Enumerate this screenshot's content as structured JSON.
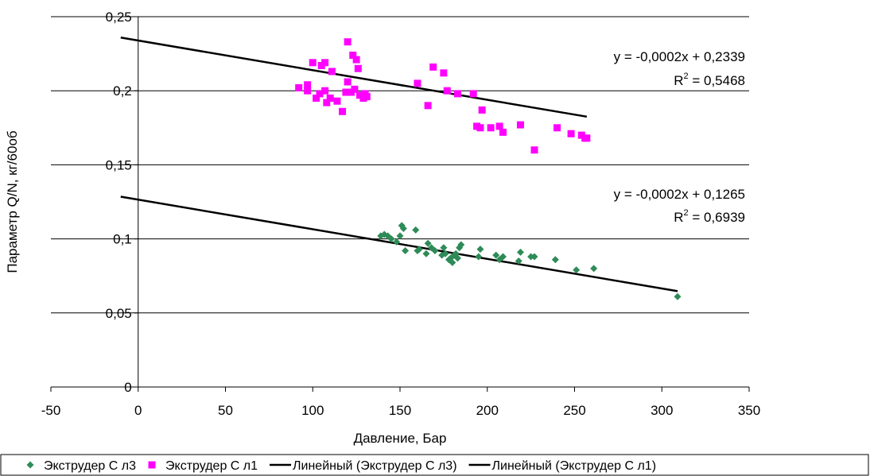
{
  "chart_data": {
    "type": "scatter",
    "xlabel": "Давление, Бар",
    "ylabel": "Параметр Q/N, кг/60об",
    "xlim": [
      -50,
      350
    ],
    "ylim": [
      0,
      0.25
    ],
    "x_ticks": [
      -50,
      0,
      50,
      100,
      150,
      200,
      250,
      300,
      350
    ],
    "x_tick_labels": [
      "-50",
      "0",
      "50",
      "100",
      "150",
      "200",
      "250",
      "300",
      "350"
    ],
    "y_ticks": [
      0,
      0.05,
      0.1,
      0.15,
      0.2,
      0.25
    ],
    "y_tick_labels": [
      "0",
      "0,05",
      "0,1",
      "0,15",
      "0,2",
      "0,25"
    ],
    "grid": "horizontal",
    "legend_position": "bottom",
    "series": [
      {
        "name": "Экструдер С л3",
        "marker": "diamond",
        "color": "#2e8b57",
        "points": [
          [
            139,
            0.102
          ],
          [
            141,
            0.103
          ],
          [
            143,
            0.102
          ],
          [
            145,
            0.1
          ],
          [
            148,
            0.098
          ],
          [
            150,
            0.102
          ],
          [
            151,
            0.109
          ],
          [
            152,
            0.107
          ],
          [
            153,
            0.092
          ],
          [
            159,
            0.106
          ],
          [
            160,
            0.092
          ],
          [
            161,
            0.093
          ],
          [
            165,
            0.09
          ],
          [
            166,
            0.097
          ],
          [
            168,
            0.094
          ],
          [
            170,
            0.092
          ],
          [
            174,
            0.089
          ],
          [
            175,
            0.094
          ],
          [
            176,
            0.09
          ],
          [
            178,
            0.086
          ],
          [
            179,
            0.087
          ],
          [
            180,
            0.084
          ],
          [
            181,
            0.089
          ],
          [
            182,
            0.09
          ],
          [
            183,
            0.087
          ],
          [
            184,
            0.094
          ],
          [
            185,
            0.096
          ],
          [
            195,
            0.088
          ],
          [
            196,
            0.093
          ],
          [
            205,
            0.089
          ],
          [
            207,
            0.086
          ],
          [
            209,
            0.088
          ],
          [
            218,
            0.085
          ],
          [
            219,
            0.091
          ],
          [
            225,
            0.088
          ],
          [
            227,
            0.088
          ],
          [
            239,
            0.086
          ],
          [
            251,
            0.079
          ],
          [
            261,
            0.08
          ],
          [
            309,
            0.061
          ]
        ]
      },
      {
        "name": "Экструдер С л1",
        "marker": "square",
        "color": "#ff00ff",
        "points": [
          [
            92,
            0.202
          ],
          [
            97,
            0.204
          ],
          [
            97,
            0.2
          ],
          [
            100,
            0.219
          ],
          [
            102,
            0.195
          ],
          [
            104,
            0.198
          ],
          [
            105,
            0.217
          ],
          [
            107,
            0.2
          ],
          [
            107,
            0.219
          ],
          [
            108,
            0.192
          ],
          [
            110,
            0.195
          ],
          [
            111,
            0.213
          ],
          [
            114,
            0.193
          ],
          [
            117,
            0.186
          ],
          [
            119,
            0.199
          ],
          [
            120,
            0.233
          ],
          [
            120,
            0.206
          ],
          [
            122,
            0.199
          ],
          [
            123,
            0.224
          ],
          [
            124,
            0.201
          ],
          [
            125,
            0.221
          ],
          [
            126,
            0.215
          ],
          [
            127,
            0.197
          ],
          [
            129,
            0.195
          ],
          [
            130,
            0.198
          ],
          [
            131,
            0.196
          ],
          [
            160,
            0.205
          ],
          [
            166,
            0.19
          ],
          [
            169,
            0.216
          ],
          [
            175,
            0.212
          ],
          [
            177,
            0.2
          ],
          [
            183,
            0.198
          ],
          [
            192,
            0.198
          ],
          [
            194,
            0.176
          ],
          [
            196,
            0.175
          ],
          [
            197,
            0.187
          ],
          [
            202,
            0.175
          ],
          [
            207,
            0.176
          ],
          [
            209,
            0.172
          ],
          [
            219,
            0.177
          ],
          [
            227,
            0.16
          ],
          [
            240,
            0.175
          ],
          [
            248,
            0.171
          ],
          [
            254,
            0.17
          ],
          [
            256,
            0.168
          ],
          [
            257,
            0.168
          ]
        ]
      }
    ],
    "trendlines": [
      {
        "name": "Линейный (Экструдер С л3)",
        "color": "#000000",
        "slope": -0.0002,
        "intercept": 0.1265,
        "x_range": [
          -10,
          309
        ],
        "equation": "y = -0,0002x + 0,1265",
        "r2_prefix": "R",
        "r2_exp": "2",
        "r2_value": " = 0,6939"
      },
      {
        "name": "Линейный (Экструдер С л1)",
        "color": "#000000",
        "slope": -0.0002,
        "intercept": 0.2339,
        "x_range": [
          -10,
          257
        ],
        "equation": "y = -0,0002x + 0,2339",
        "r2_prefix": "R",
        "r2_exp": "2",
        "r2_value": " = 0,5468"
      }
    ],
    "legend": [
      {
        "label": "Экструдер С л3",
        "marker": "diamond",
        "color": "#2e8b57"
      },
      {
        "label": "Экструдер С л1",
        "marker": "square",
        "color": "#ff00ff"
      },
      {
        "label": "Линейный (Экструдер С л3)",
        "marker": "line",
        "color": "#000000"
      },
      {
        "label": "Линейный (Экструдер С л1)",
        "marker": "line",
        "color": "#000000"
      }
    ]
  }
}
